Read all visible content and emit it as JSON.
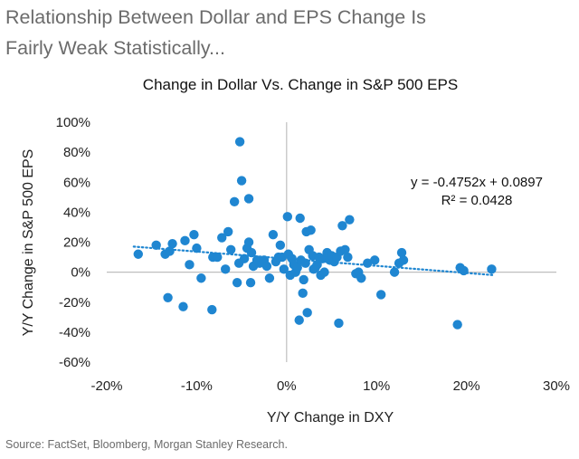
{
  "headline": {
    "line1": "Relationship Between Dollar and EPS Change Is",
    "line2": "Fairly Weak Statistically..."
  },
  "source": "Source: FactSet, Bloomberg, Morgan Stanley Research.",
  "colors": {
    "points": "#1f86d1",
    "trendline": "#1f86d1",
    "axis": "#bfbfbf"
  },
  "chart_data": {
    "type": "scatter",
    "title": "Change in Dollar Vs. Change in S&P 500 EPS",
    "xlabel": "Y/Y Change in DXY",
    "ylabel": "Y/Y Change in S&P 500 EPS",
    "xlim": [
      -0.2,
      0.3
    ],
    "ylim": [
      -0.6,
      1.0
    ],
    "xticks": [
      -0.2,
      -0.1,
      0,
      0.1,
      0.2,
      0.3
    ],
    "xtick_labels": [
      "-20%",
      "-10%",
      "0%",
      "10%",
      "20%",
      "30%"
    ],
    "yticks": [
      1.0,
      0.8,
      0.6,
      0.4,
      0.2,
      0,
      -0.2,
      -0.4,
      -0.6
    ],
    "ytick_labels": [
      "100%",
      "80%",
      "60%",
      "40%",
      "20%",
      "0%",
      "-20%",
      "-40%",
      "-60%"
    ],
    "trendline": {
      "type": "linear",
      "slope": -0.4752,
      "intercept": 0.0897,
      "x_range": [
        -0.17,
        0.23
      ]
    },
    "equation": "y = -0.4752x + 0.0897",
    "r_squared": "R² = 0.0428",
    "points": [
      [
        -0.165,
        0.12
      ],
      [
        -0.145,
        0.18
      ],
      [
        -0.135,
        0.12
      ],
      [
        -0.13,
        0.14
      ],
      [
        -0.127,
        0.19
      ],
      [
        -0.132,
        -0.17
      ],
      [
        -0.115,
        -0.23
      ],
      [
        -0.113,
        0.21
      ],
      [
        -0.108,
        0.05
      ],
      [
        -0.103,
        0.25
      ],
      [
        -0.1,
        0.16
      ],
      [
        -0.095,
        -0.04
      ],
      [
        -0.083,
        -0.25
      ],
      [
        -0.082,
        0.1
      ],
      [
        -0.077,
        0.1
      ],
      [
        -0.072,
        0.23
      ],
      [
        -0.068,
        0.02
      ],
      [
        -0.065,
        0.27
      ],
      [
        -0.062,
        0.15
      ],
      [
        -0.058,
        0.47
      ],
      [
        -0.055,
        -0.07
      ],
      [
        -0.053,
        0.06
      ],
      [
        -0.052,
        0.87
      ],
      [
        -0.05,
        0.61
      ],
      [
        -0.047,
        0.09
      ],
      [
        -0.044,
        0.16
      ],
      [
        -0.042,
        0.2
      ],
      [
        -0.042,
        0.49
      ],
      [
        -0.04,
        -0.07
      ],
      [
        -0.039,
        0.13
      ],
      [
        -0.037,
        0.04
      ],
      [
        -0.033,
        0.08
      ],
      [
        -0.03,
        0.06
      ],
      [
        -0.025,
        0.08
      ],
      [
        -0.022,
        0.04
      ],
      [
        -0.019,
        -0.04
      ],
      [
        -0.015,
        0.25
      ],
      [
        -0.012,
        0.07
      ],
      [
        -0.009,
        0.1
      ],
      [
        -0.007,
        0.18
      ],
      [
        -0.005,
        0.1
      ],
      [
        -0.003,
        0.02
      ],
      [
        0.001,
        0.37
      ],
      [
        0.002,
        0.12
      ],
      [
        0.004,
        -0.02
      ],
      [
        0.006,
        0.09
      ],
      [
        0.008,
        0.05
      ],
      [
        0.01,
        0.0
      ],
      [
        0.012,
        0.03
      ],
      [
        0.014,
        -0.32
      ],
      [
        0.015,
        0.36
      ],
      [
        0.016,
        0.08
      ],
      [
        0.018,
        -0.14
      ],
      [
        0.019,
        -0.05
      ],
      [
        0.021,
        0.06
      ],
      [
        0.022,
        0.27
      ],
      [
        0.023,
        -0.27
      ],
      [
        0.025,
        0.15
      ],
      [
        0.027,
        0.28
      ],
      [
        0.029,
        0.11
      ],
      [
        0.03,
        0.02
      ],
      [
        0.032,
        0.03
      ],
      [
        0.034,
        0.05
      ],
      [
        0.036,
        0.1
      ],
      [
        0.038,
        -0.02
      ],
      [
        0.04,
        0.09
      ],
      [
        0.042,
        0.0
      ],
      [
        0.045,
        0.13
      ],
      [
        0.048,
        0.08
      ],
      [
        0.05,
        0.11
      ],
      [
        0.053,
        0.07
      ],
      [
        0.056,
        0.1
      ],
      [
        0.058,
        -0.34
      ],
      [
        0.06,
        0.14
      ],
      [
        0.062,
        0.31
      ],
      [
        0.065,
        0.15
      ],
      [
        0.068,
        0.1
      ],
      [
        0.07,
        0.35
      ],
      [
        0.077,
        -0.01
      ],
      [
        0.08,
        0.0
      ],
      [
        0.083,
        -0.04
      ],
      [
        0.09,
        0.06
      ],
      [
        0.098,
        0.08
      ],
      [
        0.105,
        -0.15
      ],
      [
        0.12,
        0.0
      ],
      [
        0.125,
        0.06
      ],
      [
        0.128,
        0.13
      ],
      [
        0.13,
        0.08
      ],
      [
        0.19,
        -0.35
      ],
      [
        0.193,
        0.03
      ],
      [
        0.197,
        0.01
      ],
      [
        0.228,
        0.02
      ]
    ]
  }
}
